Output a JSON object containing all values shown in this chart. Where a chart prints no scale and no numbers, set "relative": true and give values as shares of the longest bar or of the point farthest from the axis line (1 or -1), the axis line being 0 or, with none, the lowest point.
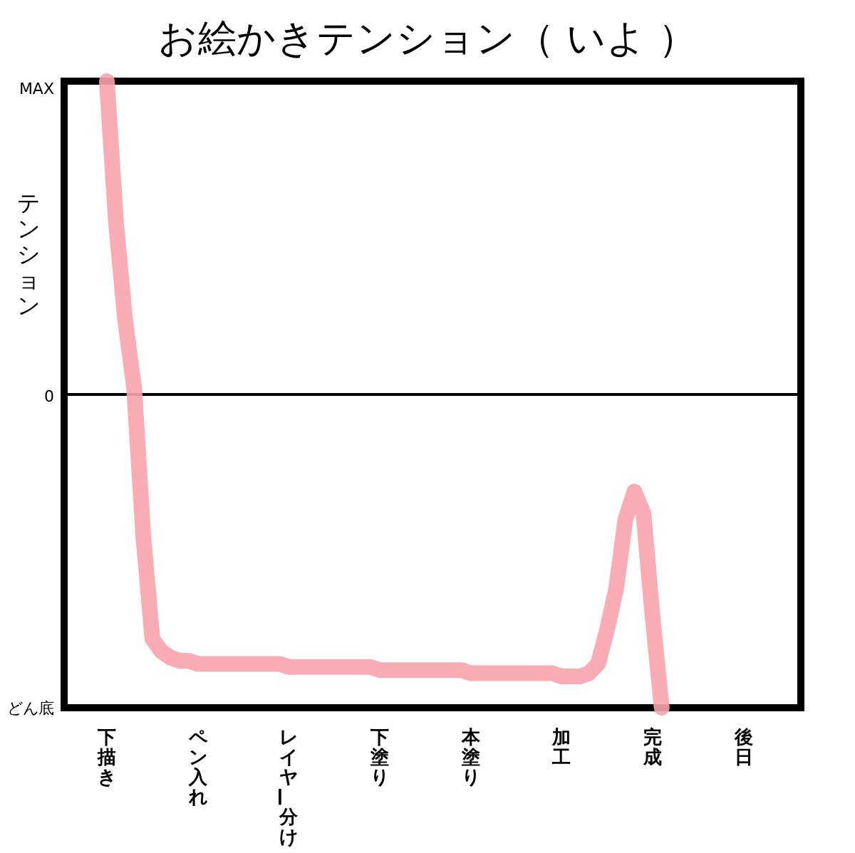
{
  "chart_data": {
    "type": "line",
    "title": "お絵かきテンション（ いよ ）",
    "ylabel": "テンション",
    "relative": true,
    "categories": [
      "下描き",
      null,
      null,
      null,
      null,
      null,
      null,
      null,
      null,
      null,
      "ペン入れ",
      null,
      null,
      null,
      null,
      null,
      null,
      null,
      null,
      null,
      "レイヤー分け",
      null,
      null,
      null,
      null,
      null,
      null,
      null,
      null,
      null,
      "下塗り",
      null,
      null,
      null,
      null,
      null,
      null,
      null,
      null,
      null,
      "本塗り",
      null,
      null,
      null,
      null,
      null,
      null,
      null,
      null,
      null,
      "加工",
      null,
      null,
      null,
      null,
      null,
      null,
      null,
      null,
      null,
      "完成",
      null,
      null,
      null,
      null,
      null,
      null,
      null,
      null,
      null,
      "後日",
      null
    ],
    "annotations": [
      "MAX",
      "0",
      "どん底"
    ],
    "series": [
      {
        "color": "#f9a3ad",
        "values": [
          1.0,
          0.55,
          0.24,
          0.02,
          -0.45,
          -0.78,
          -0.82,
          -0.84,
          -0.85,
          -0.85,
          -0.86,
          -0.86,
          -0.86,
          -0.86,
          -0.86,
          -0.86,
          -0.86,
          -0.86,
          -0.86,
          -0.86,
          -0.87,
          -0.87,
          -0.87,
          -0.87,
          -0.87,
          -0.87,
          -0.87,
          -0.87,
          -0.87,
          -0.87,
          -0.88,
          -0.88,
          -0.88,
          -0.88,
          -0.88,
          -0.88,
          -0.88,
          -0.88,
          -0.88,
          -0.88,
          -0.89,
          -0.89,
          -0.89,
          -0.89,
          -0.89,
          -0.89,
          -0.89,
          -0.89,
          -0.89,
          -0.89,
          -0.9,
          -0.9,
          -0.9,
          -0.89,
          -0.86,
          -0.75,
          -0.62,
          -0.4,
          -0.31,
          -0.38,
          -0.71,
          -1.0,
          null,
          null,
          null,
          null,
          null,
          null,
          null,
          null,
          null,
          null
        ]
      }
    ]
  }
}
